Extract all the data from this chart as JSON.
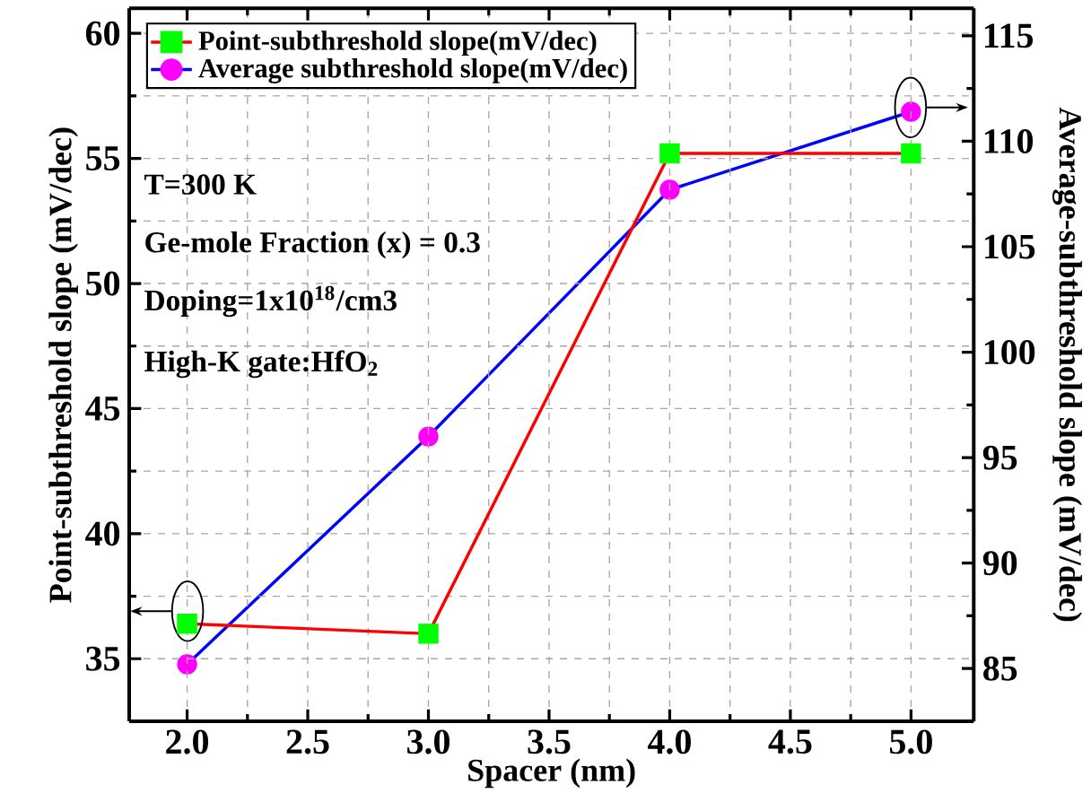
{
  "chart_data": {
    "type": "line",
    "xlabel": "Spacer (nm)",
    "ylabel": "Point-subthreshold slope (mV/dec)",
    "y2label": "Average-subthreshold slope (mV/dec)",
    "x": [
      2.0,
      3.0,
      4.0,
      5.0
    ],
    "series": [
      {
        "name": "Point-subthreshold slope(mV/dec)",
        "color": "#ff0000",
        "colors": [
          "#00ff00",
          "#00ff00",
          "#00ff00",
          "#00ff00"
        ],
        "marker": "square",
        "values": [
          36.4,
          36.0,
          55.2,
          55.2
        ]
      },
      {
        "name": "Average subthreshold slope(mV/dec)",
        "color": "#0000ff",
        "colors": [
          "#ff00ff",
          "#ff00ff",
          "#ff00ff",
          "#ff00ff"
        ],
        "marker": "circle",
        "axis": "y2",
        "values": [
          85.2,
          96.0,
          107.7,
          111.4
        ]
      }
    ],
    "xlim": [
      1.76,
      5.26
    ],
    "xticks": [
      {
        "value": 2.0,
        "label": "2.0"
      },
      {
        "value": 2.5,
        "label": "2.5"
      },
      {
        "value": 3.0,
        "label": "3.0"
      },
      {
        "value": 3.5,
        "label": "3.5"
      },
      {
        "value": 4.0,
        "label": "4.0"
      },
      {
        "value": 4.5,
        "label": "4.5"
      },
      {
        "value": 5.0,
        "label": "5.0"
      }
    ],
    "ylim": [
      32.5,
      61
    ],
    "yticks": [
      35,
      40,
      45,
      50,
      55,
      60
    ],
    "y2lim": [
      82.5,
      116.3
    ],
    "y2ticks": [
      85,
      90,
      95,
      100,
      105,
      110,
      115
    ],
    "grid": true,
    "legend": "top left",
    "line_style": "solid",
    "annotations": [
      "T=300 K",
      "Ge-mole Fraction (x) = 0.3",
      "Doping=1x10$^{18}$/cm3",
      "High-K gate:HfO$_{2}$"
    ]
  }
}
